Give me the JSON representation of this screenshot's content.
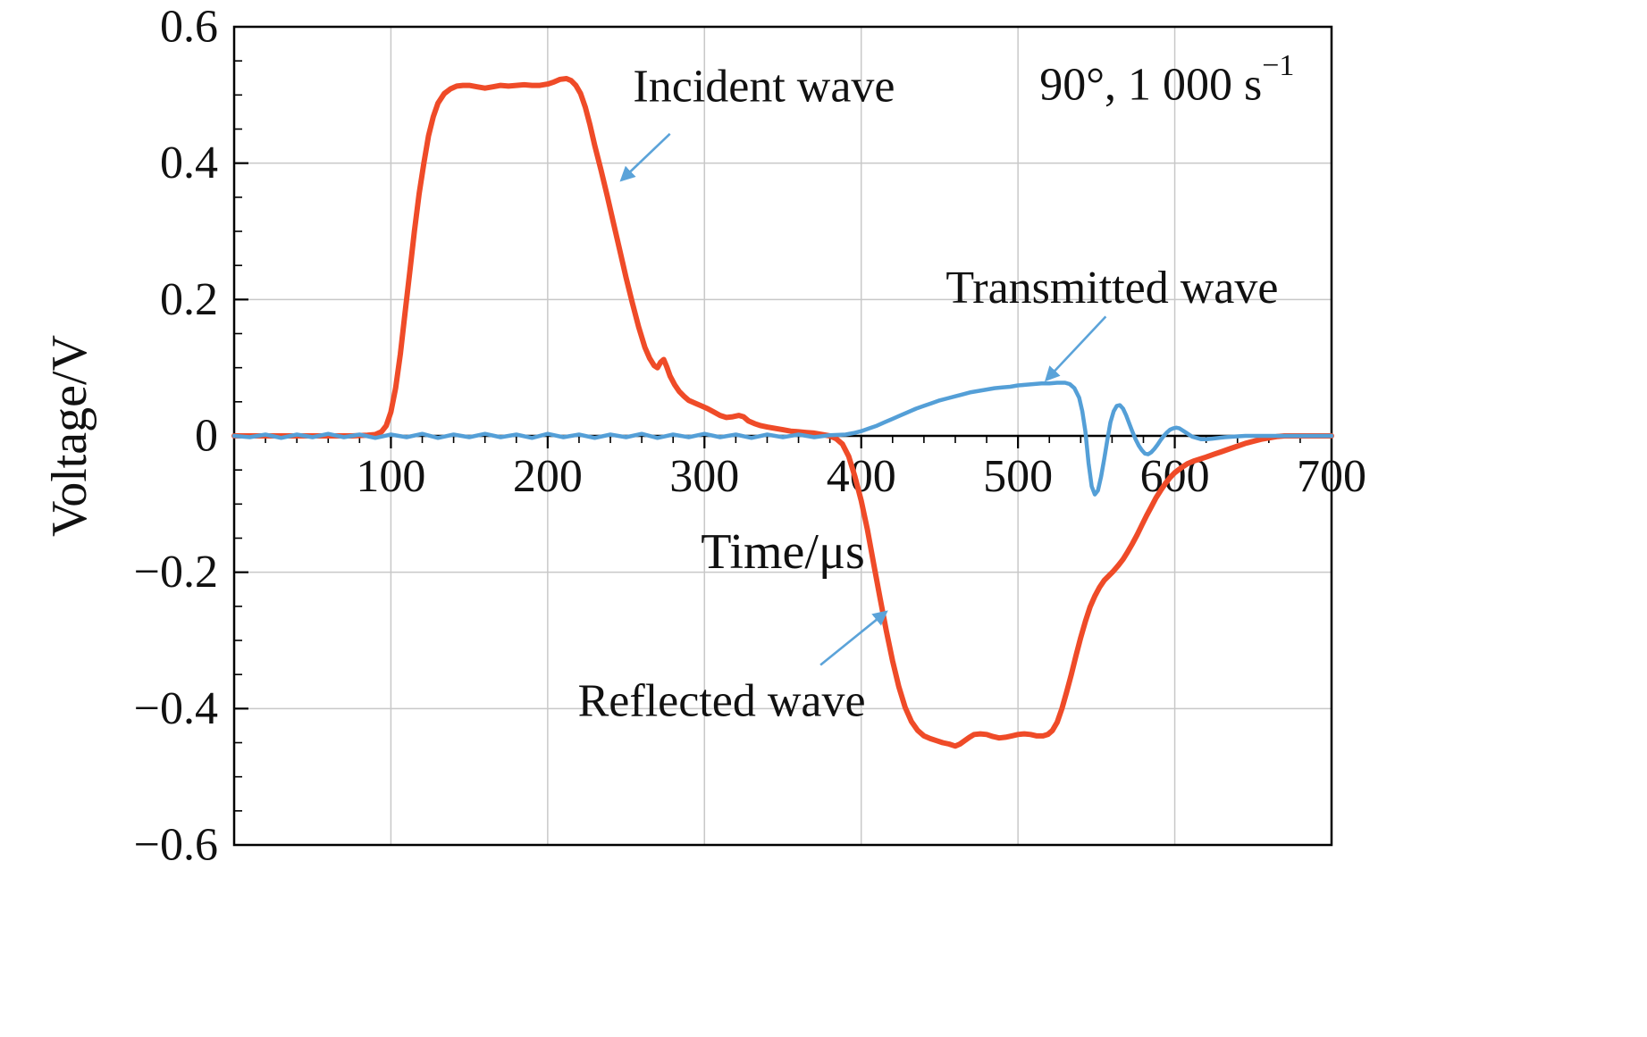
{
  "chart_data": {
    "type": "line",
    "title": "",
    "xlabel": "Time/μs",
    "ylabel": "Voltage/V",
    "xlim": [
      0,
      700
    ],
    "ylim": [
      -0.6,
      0.6
    ],
    "grid": true,
    "grid_color": "#c8c8c8",
    "axis_color": "#000000",
    "arrow_color": "#5ba3d9",
    "x_minor_step": 20,
    "y_minor_step": 0.05,
    "x_ticks": {
      "values": [
        100,
        200,
        300,
        400,
        500,
        600,
        700
      ],
      "labels": [
        "100",
        "200",
        "300",
        "400",
        "500",
        "600",
        "700"
      ]
    },
    "y_ticks": {
      "values": [
        0.6,
        0.4,
        0.2,
        0,
        -0.2,
        -0.4,
        -0.6
      ],
      "labels": [
        "0.6",
        "0.4",
        "0.2",
        "0",
        "−0.2",
        "−0.4",
        "−0.6"
      ]
    },
    "condition_label": {
      "text": "90°, 1 000 s",
      "sup": "−1",
      "x": 595,
      "y": 0.515
    },
    "annotations": [
      {
        "id": "incident",
        "text": "Incident wave",
        "x": 338,
        "y": 0.512,
        "arrow": {
          "x1": 278,
          "y1": 0.443,
          "x2": 247,
          "y2": 0.375
        }
      },
      {
        "id": "transmitted",
        "text": "Transmitted wave",
        "x": 560,
        "y": 0.217,
        "arrow": {
          "x1": 556,
          "y1": 0.175,
          "x2": 518,
          "y2": 0.082
        }
      },
      {
        "id": "reflected",
        "text": "Reflected wave",
        "x": 311,
        "y": -0.389,
        "arrow": {
          "x1": 374,
          "y1": -0.336,
          "x2": 416,
          "y2": -0.258
        }
      }
    ],
    "series": [
      {
        "name": "incident-and-reflected-wave",
        "color": "#ef4b28",
        "width": 6,
        "points": [
          [
            0,
            0
          ],
          [
            20,
            0
          ],
          [
            40,
            0
          ],
          [
            60,
            0
          ],
          [
            75,
            0
          ],
          [
            85,
            0.001
          ],
          [
            90,
            0.002
          ],
          [
            94,
            0.006
          ],
          [
            97,
            0.015
          ],
          [
            100,
            0.035
          ],
          [
            103,
            0.07
          ],
          [
            106,
            0.12
          ],
          [
            109,
            0.18
          ],
          [
            112,
            0.24
          ],
          [
            115,
            0.3
          ],
          [
            118,
            0.355
          ],
          [
            121,
            0.4
          ],
          [
            124,
            0.44
          ],
          [
            127,
            0.468
          ],
          [
            130,
            0.488
          ],
          [
            134,
            0.502
          ],
          [
            138,
            0.509
          ],
          [
            142,
            0.513
          ],
          [
            146,
            0.514
          ],
          [
            150,
            0.514
          ],
          [
            155,
            0.512
          ],
          [
            160,
            0.51
          ],
          [
            165,
            0.512
          ],
          [
            170,
            0.514
          ],
          [
            175,
            0.513
          ],
          [
            180,
            0.514
          ],
          [
            185,
            0.515
          ],
          [
            190,
            0.514
          ],
          [
            195,
            0.514
          ],
          [
            200,
            0.516
          ],
          [
            204,
            0.519
          ],
          [
            208,
            0.523
          ],
          [
            212,
            0.524
          ],
          [
            215,
            0.521
          ],
          [
            218,
            0.514
          ],
          [
            221,
            0.502
          ],
          [
            224,
            0.482
          ],
          [
            227,
            0.456
          ],
          [
            230,
            0.426
          ],
          [
            234,
            0.39
          ],
          [
            238,
            0.352
          ],
          [
            242,
            0.312
          ],
          [
            246,
            0.272
          ],
          [
            250,
            0.232
          ],
          [
            254,
            0.195
          ],
          [
            258,
            0.16
          ],
          [
            262,
            0.13
          ],
          [
            265,
            0.114
          ],
          [
            268,
            0.103
          ],
          [
            270,
            0.1
          ],
          [
            272,
            0.108
          ],
          [
            274,
            0.112
          ],
          [
            276,
            0.101
          ],
          [
            278,
            0.088
          ],
          [
            281,
            0.075
          ],
          [
            284,
            0.065
          ],
          [
            287,
            0.058
          ],
          [
            290,
            0.052
          ],
          [
            294,
            0.048
          ],
          [
            298,
            0.044
          ],
          [
            302,
            0.04
          ],
          [
            306,
            0.035
          ],
          [
            310,
            0.03
          ],
          [
            314,
            0.027
          ],
          [
            318,
            0.028
          ],
          [
            322,
            0.03
          ],
          [
            325,
            0.028
          ],
          [
            328,
            0.022
          ],
          [
            332,
            0.018
          ],
          [
            336,
            0.015
          ],
          [
            340,
            0.013
          ],
          [
            345,
            0.011
          ],
          [
            350,
            0.009
          ],
          [
            355,
            0.007
          ],
          [
            360,
            0.006
          ],
          [
            365,
            0.005
          ],
          [
            370,
            0.004
          ],
          [
            375,
            0.002
          ],
          [
            380,
            0.0
          ],
          [
            384,
            -0.004
          ],
          [
            388,
            -0.012
          ],
          [
            392,
            -0.03
          ],
          [
            396,
            -0.06
          ],
          [
            400,
            -0.095
          ],
          [
            404,
            -0.138
          ],
          [
            408,
            -0.188
          ],
          [
            412,
            -0.238
          ],
          [
            416,
            -0.286
          ],
          [
            420,
            -0.33
          ],
          [
            424,
            -0.368
          ],
          [
            428,
            -0.398
          ],
          [
            432,
            -0.419
          ],
          [
            436,
            -0.432
          ],
          [
            440,
            -0.44
          ],
          [
            444,
            -0.444
          ],
          [
            448,
            -0.447
          ],
          [
            452,
            -0.45
          ],
          [
            456,
            -0.452
          ],
          [
            460,
            -0.455
          ],
          [
            463,
            -0.452
          ],
          [
            466,
            -0.447
          ],
          [
            469,
            -0.442
          ],
          [
            472,
            -0.438
          ],
          [
            476,
            -0.437
          ],
          [
            480,
            -0.438
          ],
          [
            484,
            -0.441
          ],
          [
            488,
            -0.443
          ],
          [
            492,
            -0.442
          ],
          [
            496,
            -0.44
          ],
          [
            500,
            -0.438
          ],
          [
            504,
            -0.437
          ],
          [
            508,
            -0.438
          ],
          [
            512,
            -0.44
          ],
          [
            516,
            -0.44
          ],
          [
            519,
            -0.438
          ],
          [
            522,
            -0.432
          ],
          [
            525,
            -0.42
          ],
          [
            528,
            -0.4
          ],
          [
            531,
            -0.376
          ],
          [
            534,
            -0.35
          ],
          [
            537,
            -0.322
          ],
          [
            540,
            -0.296
          ],
          [
            543,
            -0.272
          ],
          [
            546,
            -0.251
          ],
          [
            549,
            -0.235
          ],
          [
            552,
            -0.222
          ],
          [
            555,
            -0.212
          ],
          [
            558,
            -0.205
          ],
          [
            561,
            -0.198
          ],
          [
            564,
            -0.19
          ],
          [
            567,
            -0.181
          ],
          [
            570,
            -0.17
          ],
          [
            573,
            -0.158
          ],
          [
            576,
            -0.145
          ],
          [
            579,
            -0.131
          ],
          [
            582,
            -0.117
          ],
          [
            585,
            -0.104
          ],
          [
            588,
            -0.091
          ],
          [
            591,
            -0.08
          ],
          [
            594,
            -0.07
          ],
          [
            597,
            -0.061
          ],
          [
            600,
            -0.054
          ],
          [
            604,
            -0.047
          ],
          [
            608,
            -0.041
          ],
          [
            612,
            -0.037
          ],
          [
            616,
            -0.034
          ],
          [
            620,
            -0.031
          ],
          [
            625,
            -0.027
          ],
          [
            630,
            -0.023
          ],
          [
            635,
            -0.019
          ],
          [
            640,
            -0.015
          ],
          [
            645,
            -0.011
          ],
          [
            650,
            -0.008
          ],
          [
            655,
            -0.005
          ],
          [
            660,
            -0.003
          ],
          [
            665,
            -0.001
          ],
          [
            670,
            0
          ],
          [
            680,
            0
          ],
          [
            690,
            0
          ],
          [
            700,
            0
          ]
        ]
      },
      {
        "name": "transmitted-wave",
        "color": "#549fd7",
        "width": 4.5,
        "points": [
          [
            0,
            0
          ],
          [
            10,
            -0.002
          ],
          [
            20,
            0.002
          ],
          [
            30,
            -0.003
          ],
          [
            40,
            0.002
          ],
          [
            50,
            -0.002
          ],
          [
            60,
            0.003
          ],
          [
            70,
            -0.002
          ],
          [
            80,
            0.002
          ],
          [
            90,
            -0.003
          ],
          [
            100,
            0.002
          ],
          [
            110,
            -0.002
          ],
          [
            120,
            0.003
          ],
          [
            130,
            -0.003
          ],
          [
            140,
            0.002
          ],
          [
            150,
            -0.002
          ],
          [
            160,
            0.003
          ],
          [
            170,
            -0.002
          ],
          [
            180,
            0.002
          ],
          [
            190,
            -0.003
          ],
          [
            200,
            0.003
          ],
          [
            210,
            -0.002
          ],
          [
            220,
            0.002
          ],
          [
            230,
            -0.003
          ],
          [
            240,
            0.002
          ],
          [
            250,
            -0.002
          ],
          [
            260,
            0.003
          ],
          [
            270,
            -0.003
          ],
          [
            280,
            0.002
          ],
          [
            290,
            -0.002
          ],
          [
            300,
            0.003
          ],
          [
            310,
            -0.002
          ],
          [
            320,
            0.002
          ],
          [
            330,
            -0.003
          ],
          [
            340,
            0.002
          ],
          [
            350,
            -0.002
          ],
          [
            360,
            0.002
          ],
          [
            370,
            -0.002
          ],
          [
            380,
            0.001
          ],
          [
            390,
            0.002
          ],
          [
            395,
            0.004
          ],
          [
            400,
            0.007
          ],
          [
            405,
            0.011
          ],
          [
            410,
            0.015
          ],
          [
            415,
            0.02
          ],
          [
            420,
            0.025
          ],
          [
            425,
            0.03
          ],
          [
            430,
            0.035
          ],
          [
            435,
            0.04
          ],
          [
            440,
            0.044
          ],
          [
            445,
            0.048
          ],
          [
            450,
            0.052
          ],
          [
            455,
            0.055
          ],
          [
            460,
            0.058
          ],
          [
            465,
            0.061
          ],
          [
            470,
            0.064
          ],
          [
            475,
            0.066
          ],
          [
            480,
            0.068
          ],
          [
            485,
            0.07
          ],
          [
            490,
            0.071
          ],
          [
            495,
            0.072
          ],
          [
            500,
            0.074
          ],
          [
            505,
            0.075
          ],
          [
            510,
            0.076
          ],
          [
            515,
            0.077
          ],
          [
            520,
            0.077
          ],
          [
            525,
            0.078
          ],
          [
            530,
            0.078
          ],
          [
            533,
            0.076
          ],
          [
            536,
            0.07
          ],
          [
            539,
            0.056
          ],
          [
            541,
            0.036
          ],
          [
            543,
            0.006
          ],
          [
            545,
            -0.04
          ],
          [
            547,
            -0.074
          ],
          [
            549,
            -0.086
          ],
          [
            551,
            -0.08
          ],
          [
            553,
            -0.06
          ],
          [
            555,
            -0.034
          ],
          [
            557,
            -0.006
          ],
          [
            559,
            0.02
          ],
          [
            561,
            0.036
          ],
          [
            563,
            0.044
          ],
          [
            565,
            0.045
          ],
          [
            567,
            0.04
          ],
          [
            569,
            0.03
          ],
          [
            571,
            0.018
          ],
          [
            573,
            0.006
          ],
          [
            575,
            -0.005
          ],
          [
            577,
            -0.014
          ],
          [
            579,
            -0.021
          ],
          [
            581,
            -0.026
          ],
          [
            583,
            -0.027
          ],
          [
            585,
            -0.024
          ],
          [
            587,
            -0.019
          ],
          [
            589,
            -0.013
          ],
          [
            591,
            -0.006
          ],
          [
            593,
            0.0
          ],
          [
            595,
            0.005
          ],
          [
            597,
            0.009
          ],
          [
            599,
            0.011
          ],
          [
            601,
            0.012
          ],
          [
            603,
            0.011
          ],
          [
            605,
            0.008
          ],
          [
            607,
            0.005
          ],
          [
            609,
            0.002
          ],
          [
            611,
            -0.001
          ],
          [
            614,
            -0.003
          ],
          [
            617,
            -0.005
          ],
          [
            620,
            -0.005
          ],
          [
            624,
            -0.004
          ],
          [
            628,
            -0.003
          ],
          [
            632,
            -0.002
          ],
          [
            638,
            -0.001
          ],
          [
            645,
            0
          ],
          [
            655,
            0
          ],
          [
            670,
            0
          ],
          [
            685,
            0
          ],
          [
            700,
            0
          ]
        ]
      }
    ]
  }
}
